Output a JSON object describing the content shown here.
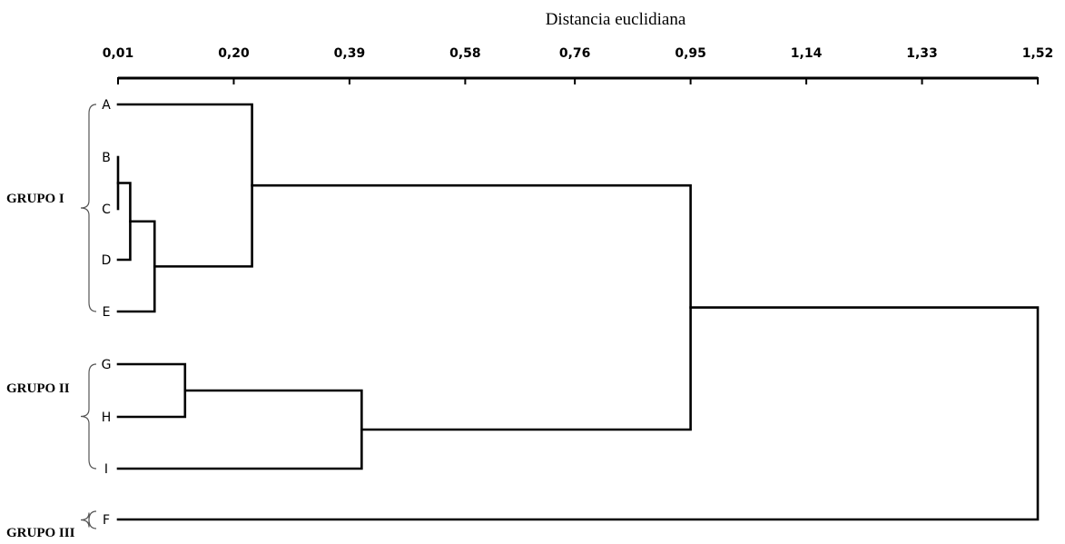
{
  "chart_data": {
    "type": "dendrogram",
    "axis_title": "Distancia euclidiana",
    "axis_position": "top",
    "ticks": [
      {
        "value": 0.01,
        "label": "0,01"
      },
      {
        "value": 0.2,
        "label": "0,20"
      },
      {
        "value": 0.39,
        "label": "0,39"
      },
      {
        "value": 0.58,
        "label": "0,58"
      },
      {
        "value": 0.76,
        "label": "0,76"
      },
      {
        "value": 0.95,
        "label": "0,95"
      },
      {
        "value": 1.14,
        "label": "1,14"
      },
      {
        "value": 1.33,
        "label": "1,33"
      },
      {
        "value": 1.52,
        "label": "1,52"
      }
    ],
    "xlim": [
      0.01,
      1.52
    ],
    "leaf_order": [
      "A",
      "B",
      "C",
      "D",
      "E",
      "G",
      "H",
      "I",
      "F"
    ],
    "merges": [
      {
        "id": "m1",
        "left": "B",
        "right": "C",
        "height": 0.01
      },
      {
        "id": "m2",
        "left": "m1",
        "right": "D",
        "height": 0.03
      },
      {
        "id": "m3",
        "left": "m2",
        "right": "E",
        "height": 0.07
      },
      {
        "id": "m4",
        "left": "A",
        "right": "m3",
        "height": 0.23
      },
      {
        "id": "m5",
        "left": "G",
        "right": "H",
        "height": 0.12
      },
      {
        "id": "m6",
        "left": "m5",
        "right": "I",
        "height": 0.41
      },
      {
        "id": "m7",
        "left": "m4",
        "right": "m6",
        "height": 0.95
      },
      {
        "id": "m8",
        "left": "m7",
        "right": "F",
        "height": 1.52
      }
    ],
    "groups": [
      {
        "label": "GRUPO I",
        "members": [
          "A",
          "B",
          "C",
          "D",
          "E"
        ]
      },
      {
        "label": "GRUPO II",
        "members": [
          "G",
          "H",
          "I"
        ]
      },
      {
        "label": "GRUPO III",
        "members": [
          "F"
        ]
      }
    ]
  }
}
